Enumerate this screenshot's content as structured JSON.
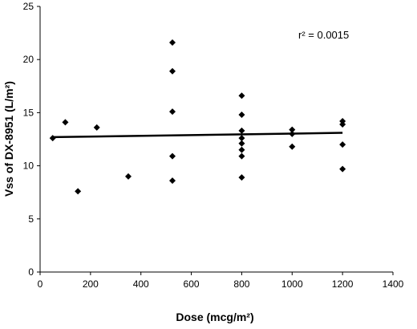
{
  "chart_data": {
    "type": "scatter",
    "x_label": "Dose (mcg/m²)",
    "y_label": "Vss of DX-8951 (L/m²)",
    "annotation": "r² = 0.0015",
    "x": [
      50,
      100,
      150,
      225,
      350,
      525,
      525,
      525,
      525,
      525,
      800,
      800,
      800,
      800,
      800,
      800,
      800,
      800,
      1000,
      1000,
      1000,
      1200,
      1200,
      1200,
      1200
    ],
    "values": [
      12.6,
      14.1,
      7.6,
      13.6,
      9.0,
      21.6,
      18.9,
      15.1,
      10.9,
      8.6,
      16.6,
      14.8,
      13.3,
      12.6,
      12.1,
      11.5,
      10.9,
      8.9,
      13.4,
      13.0,
      11.8,
      14.2,
      13.9,
      12.0,
      9.7
    ],
    "color": "#000000",
    "trend_line": {
      "x": [
        50,
        1200
      ],
      "values": [
        12.7,
        13.1
      ]
    },
    "xlim": [
      0,
      1400
    ],
    "xticks": [
      0,
      200,
      400,
      600,
      800,
      1000,
      1200,
      1400
    ],
    "ylim": [
      0,
      25
    ],
    "yticks": [
      0,
      5,
      10,
      15,
      20,
      25
    ]
  }
}
